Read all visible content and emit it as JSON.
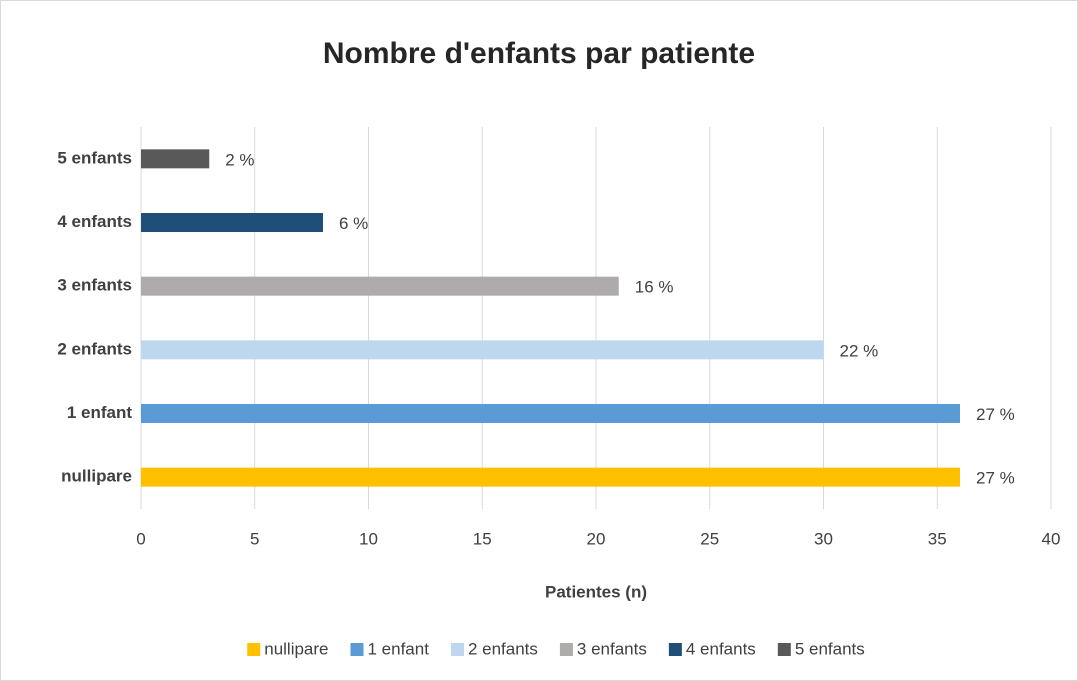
{
  "chart_data": {
    "type": "bar",
    "orientation": "horizontal",
    "title": "Nombre d'enfants par patiente",
    "x_label": "Patientes (n)",
    "categories": [
      "nullipare",
      "1 enfant",
      "2 enfants",
      "3 enfants",
      "4 enfants",
      "5 enfants"
    ],
    "values": [
      36,
      36,
      30,
      21,
      8,
      3
    ],
    "value_labels": [
      "27 %",
      "27 %",
      "22 %",
      "16 %",
      "6 %",
      "2 %"
    ],
    "colors": [
      "#ffc000",
      "#5b9bd5",
      "#bdd7ee",
      "#afabab",
      "#1f4e79",
      "#595959"
    ],
    "xlim": [
      0,
      40
    ],
    "xticks": [
      0,
      5,
      10,
      15,
      20,
      25,
      30,
      35,
      40
    ],
    "grid": true,
    "legend": "bottom"
  }
}
